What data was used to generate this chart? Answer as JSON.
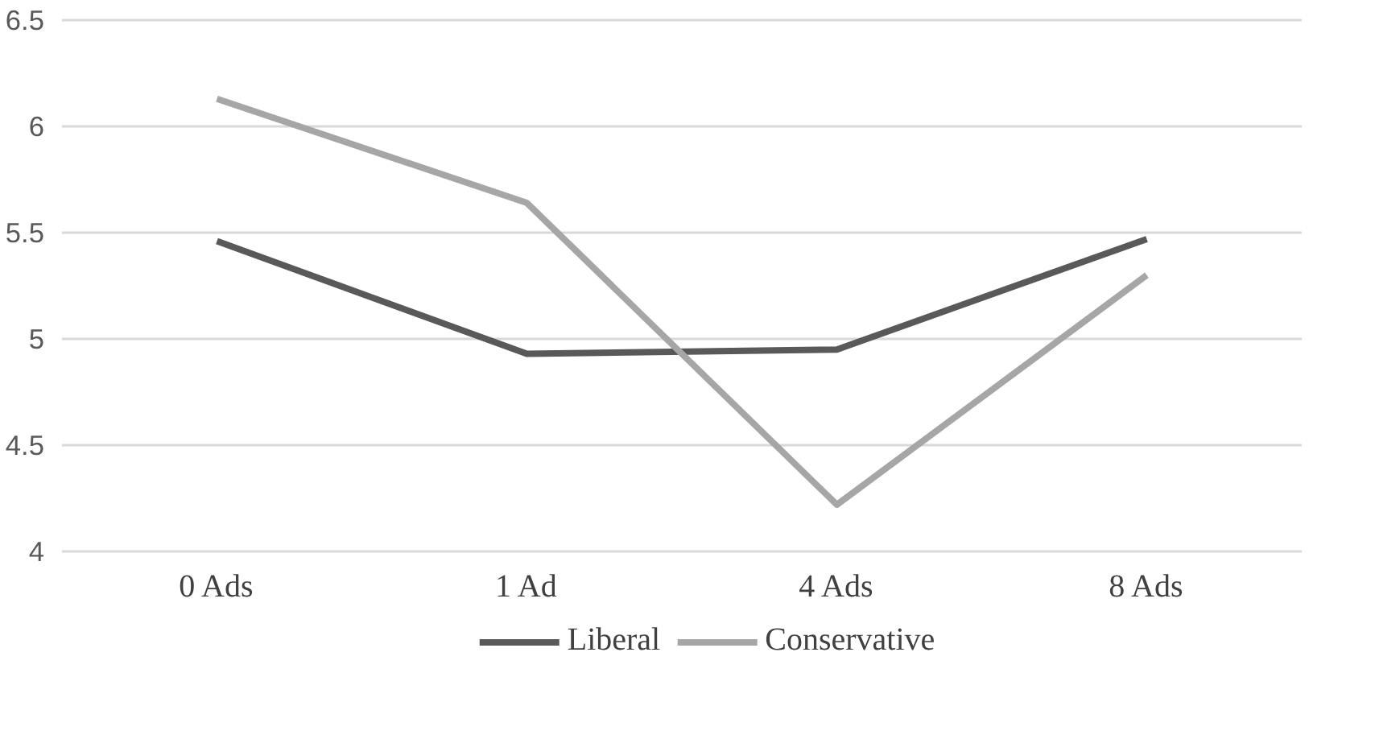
{
  "chart_data": {
    "type": "line",
    "categories": [
      "0 Ads",
      "1 Ad",
      "4 Ads",
      "8 Ads"
    ],
    "series": [
      {
        "name": "Liberal",
        "color": "#595959",
        "values": [
          5.46,
          4.93,
          4.95,
          5.47
        ]
      },
      {
        "name": "Conservative",
        "color": "#a6a6a6",
        "values": [
          6.13,
          5.64,
          4.22,
          5.3
        ]
      }
    ],
    "ylim": [
      4,
      6.5
    ],
    "yticks": [
      4,
      4.5,
      5,
      5.5,
      6,
      6.5
    ],
    "grid": "y",
    "legend": "bottom",
    "marker": "none",
    "line_style": "solid"
  }
}
